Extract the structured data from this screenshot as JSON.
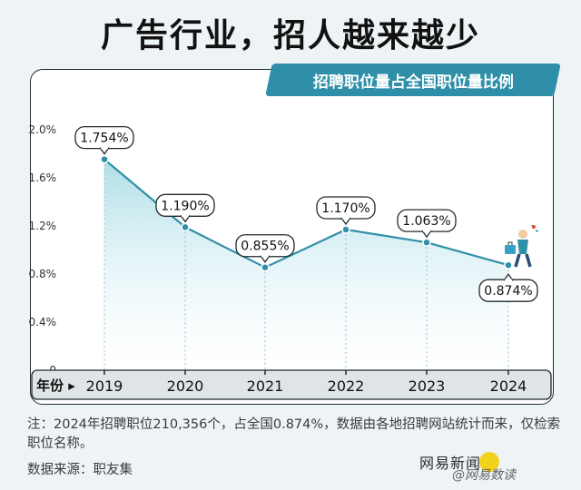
{
  "title": "广告行业，招人越来越少",
  "chart_data": {
    "type": "line",
    "title": "招聘职位量占全国职位量比例",
    "x": [
      "2019",
      "2020",
      "2021",
      "2022",
      "2023",
      "2024"
    ],
    "values": [
      1.754,
      1.19,
      0.855,
      1.17,
      1.063,
      0.874
    ],
    "data_labels": [
      "1.754%",
      "1.190%",
      "0.855%",
      "1.170%",
      "1.063%",
      "0.874%"
    ],
    "ylim": [
      0,
      2.0
    ],
    "y_ticks": [
      "0",
      "0.4%",
      "0.8%",
      "1.2%",
      "1.6%",
      "2.0%"
    ],
    "x_axis_label": "年份 ▸",
    "grid": false,
    "colors": {
      "line": "#2f8fa8",
      "area_top": "#9fd8e3",
      "area_bottom": "#ffffff",
      "axis_bar": "#dfe4e6",
      "subtitle_bg": "#2f8fa8"
    }
  },
  "note": "注：2024年招聘职位210,356个，占全国0.874%，数据由各地招聘网站统计而来，仅检索职位名称。",
  "source": "数据来源：职友集",
  "watermark": "网易新闻",
  "watermark_sub": "@网易数读",
  "icon": "walking-person-with-bag-icon"
}
